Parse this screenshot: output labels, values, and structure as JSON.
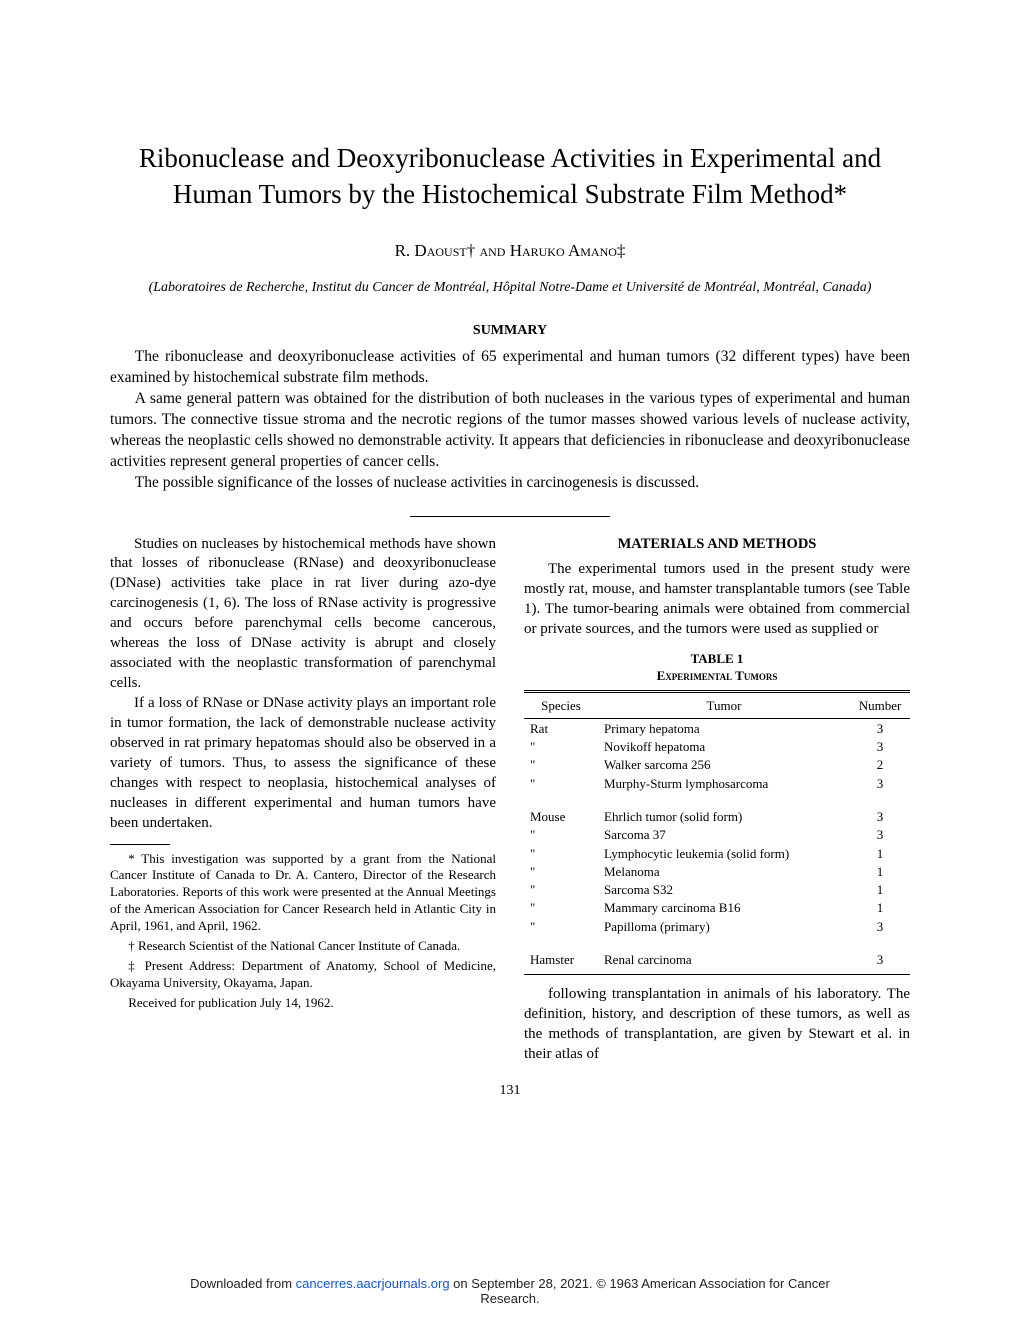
{
  "title": "Ribonuclease and Deoxyribonuclease Activities in Experimental and Human Tumors by the Histochemical Substrate Film Method*",
  "authors": "R. Daoust† and Haruko Amano‡",
  "affiliation": "(Laboratoires de Recherche, Institut du Cancer de Montréal, Hôpital Notre-Dame et Université de Montréal, Montréal, Canada)",
  "summary_heading": "SUMMARY",
  "summary": {
    "p1": "The ribonuclease and deoxyribonuclease activities of 65 experimental and human tumors (32 different types) have been examined by histochemical substrate film methods.",
    "p2": "A same general pattern was obtained for the distribution of both nucleases in the various types of experimental and human tumors. The connective tissue stroma and the necrotic regions of the tumor masses showed various levels of nuclease activity, whereas the neoplastic cells showed no demonstrable activity. It appears that deficiencies in ribonuclease and deoxyribonuclease activities represent general properties of cancer cells.",
    "p3": "The possible significance of the losses of nuclease activities in carcinogenesis is discussed."
  },
  "left_col": {
    "p1": "Studies on nucleases by histochemical methods have shown that losses of ribonuclease (RNase) and deoxyribonuclease (DNase) activities take place in rat liver during azo-dye carcinogenesis (1, 6). The loss of RNase activity is progressive and occurs before parenchymal cells become cancerous, whereas the loss of DNase activity is abrupt and closely associated with the neoplastic transformation of parenchymal cells.",
    "p2": "If a loss of RNase or DNase activity plays an important role in tumor formation, the lack of demonstrable nuclease activity observed in rat primary hepatomas should also be observed in a variety of tumors. Thus, to assess the significance of these changes with respect to neoplasia, histochemical analyses of nucleases in different experimental and human tumors have been undertaken."
  },
  "footnotes": {
    "f1": "* This investigation was supported by a grant from the National Cancer Institute of Canada to Dr. A. Cantero, Director of the Research Laboratories. Reports of this work were presented at the Annual Meetings of the American Association for Cancer Research held in Atlantic City in April, 1961, and April, 1962.",
    "f2": "† Research Scientist of the National Cancer Institute of Canada.",
    "f3": "‡ Present Address: Department of Anatomy, School of Medicine, Okayama University, Okayama, Japan.",
    "received": "Received for publication July 14, 1962."
  },
  "right_col": {
    "heading": "MATERIALS AND METHODS",
    "p1": "The experimental tumors used in the present study were mostly rat, mouse, and hamster transplantable tumors (see Table 1). The tumor-bearing animals were obtained from commercial or private sources, and the tumors were used as supplied or",
    "p2": "following transplantation in animals of his laboratory. The definition, history, and description of these tumors, as well as the methods of transplantation, are given by Stewart et al. in their atlas of"
  },
  "table": {
    "label": "TABLE 1",
    "caption": "Experimental Tumors",
    "columns": [
      "Species",
      "Tumor",
      "Number"
    ],
    "rows": [
      {
        "species": "Rat",
        "tumor": "Primary hepatoma",
        "num": "3"
      },
      {
        "species": "\"",
        "tumor": "Novikoff hepatoma",
        "num": "3"
      },
      {
        "species": "\"",
        "tumor": "Walker sarcoma 256",
        "num": "2"
      },
      {
        "species": "\"",
        "tumor": "Murphy-Sturm lymphosarcoma",
        "num": "3"
      },
      {
        "species": "Mouse",
        "tumor": "Ehrlich tumor (solid form)",
        "num": "3"
      },
      {
        "species": "\"",
        "tumor": "Sarcoma 37",
        "num": "3"
      },
      {
        "species": "\"",
        "tumor": "Lymphocytic leukemia (solid form)",
        "num": "1"
      },
      {
        "species": "\"",
        "tumor": "Melanoma",
        "num": "1"
      },
      {
        "species": "\"",
        "tumor": "Sarcoma S32",
        "num": "1"
      },
      {
        "species": "\"",
        "tumor": "Mammary carcinoma B16",
        "num": "1"
      },
      {
        "species": "\"",
        "tumor": "Papilloma (primary)",
        "num": "3"
      },
      {
        "species": "Hamster",
        "tumor": "Renal carcinoma",
        "num": "3"
      }
    ]
  },
  "page_number": "131",
  "footer": {
    "prefix": "Downloaded from ",
    "link_text": "cancerres.aacrjournals.org",
    "mid": " on September 28, 2021. © 1963 American Association for Cancer",
    "line2": "Research."
  }
}
